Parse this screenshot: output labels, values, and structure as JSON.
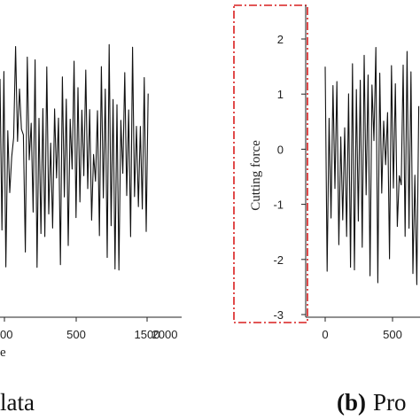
{
  "chart_data": [
    {
      "type": "line",
      "xlabel": "",
      "ylabel": "",
      "x_ticks": [
        "500",
        "1500",
        "2000"
      ],
      "x_ticks_partial_label": "00",
      "xlabel_partial": "e",
      "xlim": [
        0,
        2000
      ],
      "ylim": [
        -3,
        2.5
      ],
      "series": [
        {
          "x_range": [
            0,
            2000
          ],
          "y_min": -2.4,
          "y_max": 2.0,
          "description": "dense oscillating signal"
        }
      ],
      "caption": "lata",
      "style": {
        "line_color": "#111111"
      }
    },
    {
      "type": "line",
      "xlabel": "",
      "ylabel": "Cutting force",
      "y_ticks": [
        "2",
        "1",
        "0",
        "-1",
        "-2",
        "-3"
      ],
      "y_tick_values": [
        2,
        1,
        0,
        -1,
        -2,
        -3
      ],
      "x_ticks": [
        "0",
        "500"
      ],
      "x_tick_values": [
        0,
        500
      ],
      "xlim": [
        -150,
        2000
      ],
      "ylim": [
        -3,
        2.5
      ],
      "series": [
        {
          "x_range": [
            0,
            2000
          ],
          "y_min": -2.5,
          "y_max": 1.9,
          "description": "dense oscillating signal"
        }
      ],
      "caption_label": "(b)",
      "caption_text": "Pro",
      "highlight": {
        "target": "y-axis",
        "color": "#d81e1e",
        "style": "dash-dot"
      },
      "style": {
        "line_color": "#111111"
      }
    }
  ]
}
